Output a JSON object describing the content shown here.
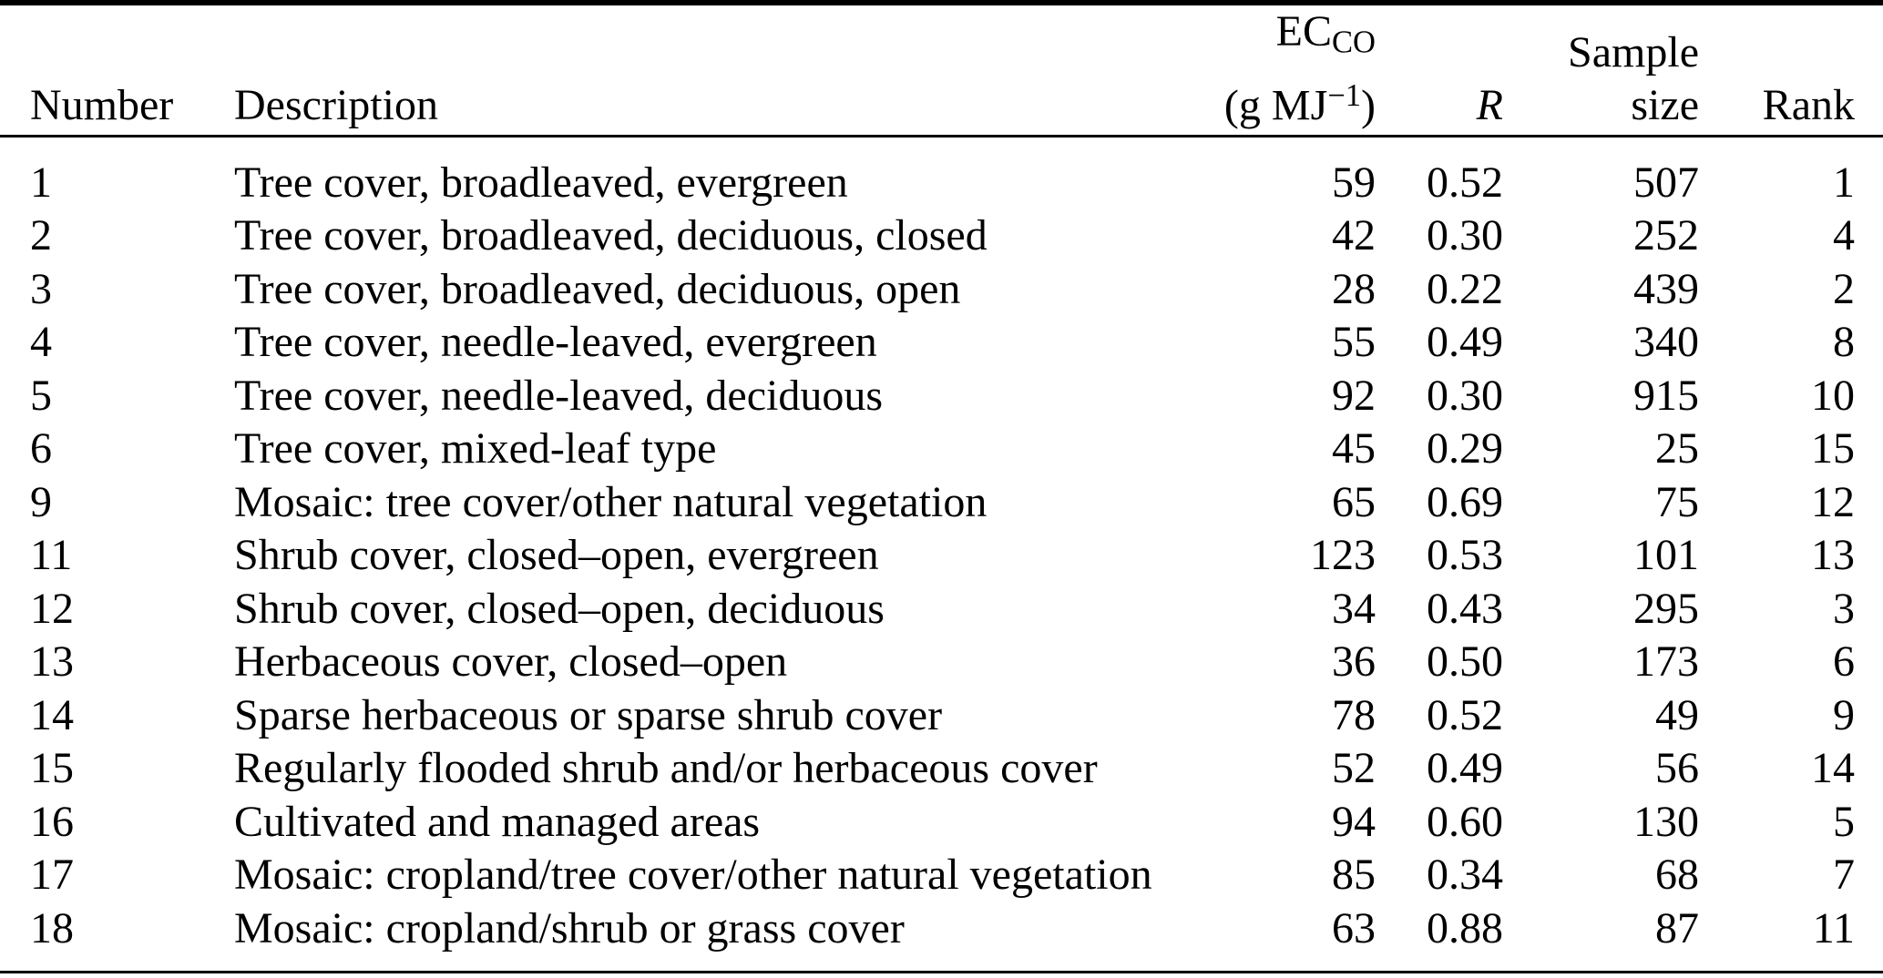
{
  "table": {
    "header": {
      "number": "Number",
      "description": "Description",
      "ec_main": "EC",
      "ec_sub": "CO",
      "unit_prefix": "(g MJ",
      "unit_sup": "−1",
      "unit_suffix": ")",
      "r": "R",
      "sample_top": "Sample",
      "sample_bottom": "size",
      "rank": "Rank"
    },
    "rows": [
      {
        "number": "1",
        "description": "Tree cover, broadleaved, evergreen",
        "ec": "59",
        "r": "0.52",
        "sample": "507",
        "rank": "1"
      },
      {
        "number": "2",
        "description": "Tree cover, broadleaved, deciduous, closed",
        "ec": "42",
        "r": "0.30",
        "sample": "252",
        "rank": "4"
      },
      {
        "number": "3",
        "description": "Tree cover, broadleaved, deciduous, open",
        "ec": "28",
        "r": "0.22",
        "sample": "439",
        "rank": "2"
      },
      {
        "number": "4",
        "description": "Tree cover, needle-leaved, evergreen",
        "ec": "55",
        "r": "0.49",
        "sample": "340",
        "rank": "8"
      },
      {
        "number": "5",
        "description": "Tree cover, needle-leaved, deciduous",
        "ec": "92",
        "r": "0.30",
        "sample": "915",
        "rank": "10"
      },
      {
        "number": "6",
        "description": "Tree cover, mixed-leaf type",
        "ec": "45",
        "r": "0.29",
        "sample": "25",
        "rank": "15"
      },
      {
        "number": "9",
        "description": "Mosaic: tree cover/other natural vegetation",
        "ec": "65",
        "r": "0.69",
        "sample": "75",
        "rank": "12"
      },
      {
        "number": "11",
        "description": "Shrub cover, closed–open, evergreen",
        "ec": "123",
        "r": "0.53",
        "sample": "101",
        "rank": "13"
      },
      {
        "number": "12",
        "description": "Shrub cover, closed–open, deciduous",
        "ec": "34",
        "r": "0.43",
        "sample": "295",
        "rank": "3"
      },
      {
        "number": "13",
        "description": "Herbaceous cover, closed–open",
        "ec": "36",
        "r": "0.50",
        "sample": "173",
        "rank": "6"
      },
      {
        "number": "14",
        "description": "Sparse herbaceous or sparse shrub cover",
        "ec": "78",
        "r": "0.52",
        "sample": "49",
        "rank": "9"
      },
      {
        "number": "15",
        "description": "Regularly flooded shrub and/or herbaceous cover",
        "ec": "52",
        "r": "0.49",
        "sample": "56",
        "rank": "14"
      },
      {
        "number": "16",
        "description": "Cultivated and managed areas",
        "ec": "94",
        "r": "0.60",
        "sample": "130",
        "rank": "5"
      },
      {
        "number": "17",
        "description": "Mosaic: cropland/tree cover/other natural vegetation",
        "ec": "85",
        "r": "0.34",
        "sample": "68",
        "rank": "7"
      },
      {
        "number": "18",
        "description": "Mosaic: cropland/shrub or grass cover",
        "ec": "63",
        "r": "0.88",
        "sample": "87",
        "rank": "11"
      }
    ]
  }
}
